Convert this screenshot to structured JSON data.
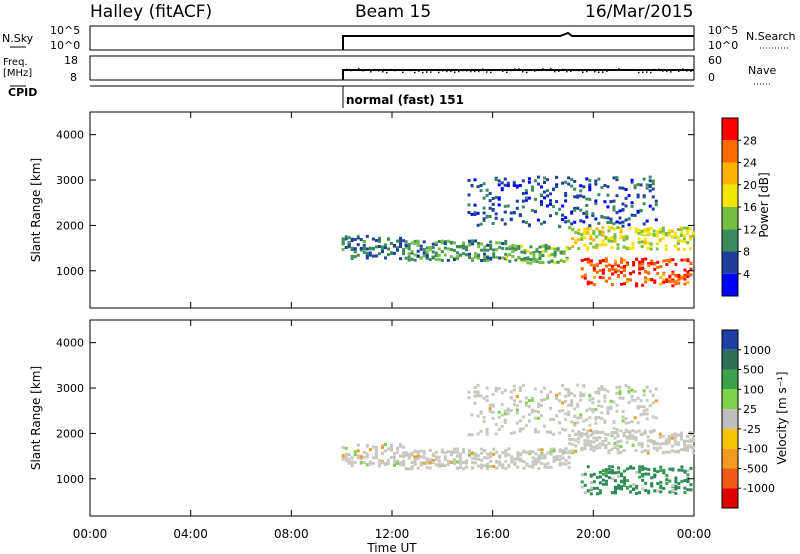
{
  "header": {
    "station": "Halley (fitACF)",
    "beam": "Beam 15",
    "date": "16/Mar/2015"
  },
  "status_panels": {
    "nsky_label": "N.Sky",
    "nsearch_label": "N.Search",
    "noise_ticks": [
      "10^5",
      "10^0"
    ],
    "freq_label": "Freq.",
    "freq_unit": "[MHz]",
    "freq_ticks": [
      "18",
      "8"
    ],
    "nave_label": "Nave",
    "nave_ticks": [
      "60",
      "0"
    ],
    "cpid_label": "CPID",
    "cpid_value": "normal (fast) 151"
  },
  "colorbars": {
    "power": {
      "label": "Power [dB]",
      "ticks": [
        "28",
        "24",
        "20",
        "16",
        "12",
        "8",
        "4"
      ],
      "colors": [
        "#ff0000",
        "#ff6a00",
        "#ffb300",
        "#f2e600",
        "#74c045",
        "#3a8c5c",
        "#1f3f9e",
        "#0000ff"
      ]
    },
    "velocity": {
      "label": "Velocity [m s⁻¹]",
      "ticks": [
        "1000",
        "500",
        "100",
        "25",
        "-25",
        "-100",
        "-500",
        "-1000"
      ],
      "colors": [
        "#1f3fa6",
        "#2e6e57",
        "#3aa24a",
        "#7ed34a",
        "#bebebe",
        "#f7c400",
        "#f29a1d",
        "#ef5a14",
        "#e00000"
      ]
    }
  },
  "chart_data": [
    {
      "type": "line",
      "title": "N.Sky / N.Search",
      "ylabel": "N.Sky",
      "y2label": "N.Search",
      "yscale": "log",
      "ylim": [
        1,
        100000
      ],
      "x": [
        "10:00",
        "12:00",
        "16:00",
        "19:00",
        "20:00",
        "00:00"
      ],
      "values": [
        4000,
        4000,
        4000,
        8000,
        4000,
        4000
      ]
    },
    {
      "type": "line",
      "title": "Freq. / Nave",
      "ylabel": "Freq. [MHz]",
      "ylim": [
        8,
        18
      ],
      "y2label": "Nave",
      "y2lim": [
        0,
        60
      ],
      "x": [
        "10:00",
        "00:00"
      ],
      "values": [
        12,
        12
      ]
    },
    {
      "type": "heatmap",
      "title": "Power",
      "xlabel": "",
      "ylabel": "Slant Range [km]",
      "xlim": [
        "00:00",
        "00:00"
      ],
      "xticks": [
        "00:00",
        "04:00",
        "08:00",
        "12:00",
        "16:00",
        "20:00",
        "00:00"
      ],
      "ylim": [
        180,
        4500
      ],
      "yticks": [
        1000,
        2000,
        3000,
        4000
      ],
      "colorbar": "Power [dB]",
      "scale": [
        4,
        30
      ],
      "bands": [
        {
          "start": "10:00",
          "end": "12:30",
          "range_lo": 1300,
          "range_hi": 1800,
          "level": 8
        },
        {
          "start": "12:30",
          "end": "16:30",
          "range_lo": 1250,
          "range_hi": 1700,
          "level": 10
        },
        {
          "start": "16:30",
          "end": "19:00",
          "range_lo": 1200,
          "range_hi": 1600,
          "level": 12
        },
        {
          "start": "19:00",
          "end": "00:00",
          "range_lo": 1500,
          "range_hi": 2000,
          "level": 16
        },
        {
          "start": "19:30",
          "end": "00:00",
          "range_lo": 700,
          "range_hi": 1300,
          "level": 26
        },
        {
          "start": "15:00",
          "end": "22:30",
          "range_lo": 2000,
          "range_hi": 3100,
          "level": 6
        }
      ]
    },
    {
      "type": "heatmap",
      "title": "Velocity",
      "xlabel": "Time UT",
      "ylabel": "Slant Range [km]",
      "xlim": [
        "00:00",
        "00:00"
      ],
      "xticks": [
        "00:00",
        "04:00",
        "08:00",
        "12:00",
        "16:00",
        "20:00",
        "00:00"
      ],
      "ylim": [
        180,
        4500
      ],
      "yticks": [
        1000,
        2000,
        3000,
        4000
      ],
      "colorbar": "Velocity [m s⁻¹]",
      "scale": [
        -1000,
        1000
      ],
      "bands": [
        {
          "start": "10:00",
          "end": "12:30",
          "range_lo": 1300,
          "range_hi": 1800,
          "level": 0
        },
        {
          "start": "12:30",
          "end": "19:00",
          "range_lo": 1250,
          "range_hi": 1700,
          "level": 0
        },
        {
          "start": "19:00",
          "end": "00:00",
          "range_lo": 1600,
          "range_hi": 2100,
          "level": 0
        },
        {
          "start": "19:30",
          "end": "00:00",
          "range_lo": 700,
          "range_hi": 1300,
          "level": 300
        },
        {
          "start": "15:00",
          "end": "22:30",
          "range_lo": 2000,
          "range_hi": 3100,
          "level": 0
        }
      ]
    }
  ]
}
